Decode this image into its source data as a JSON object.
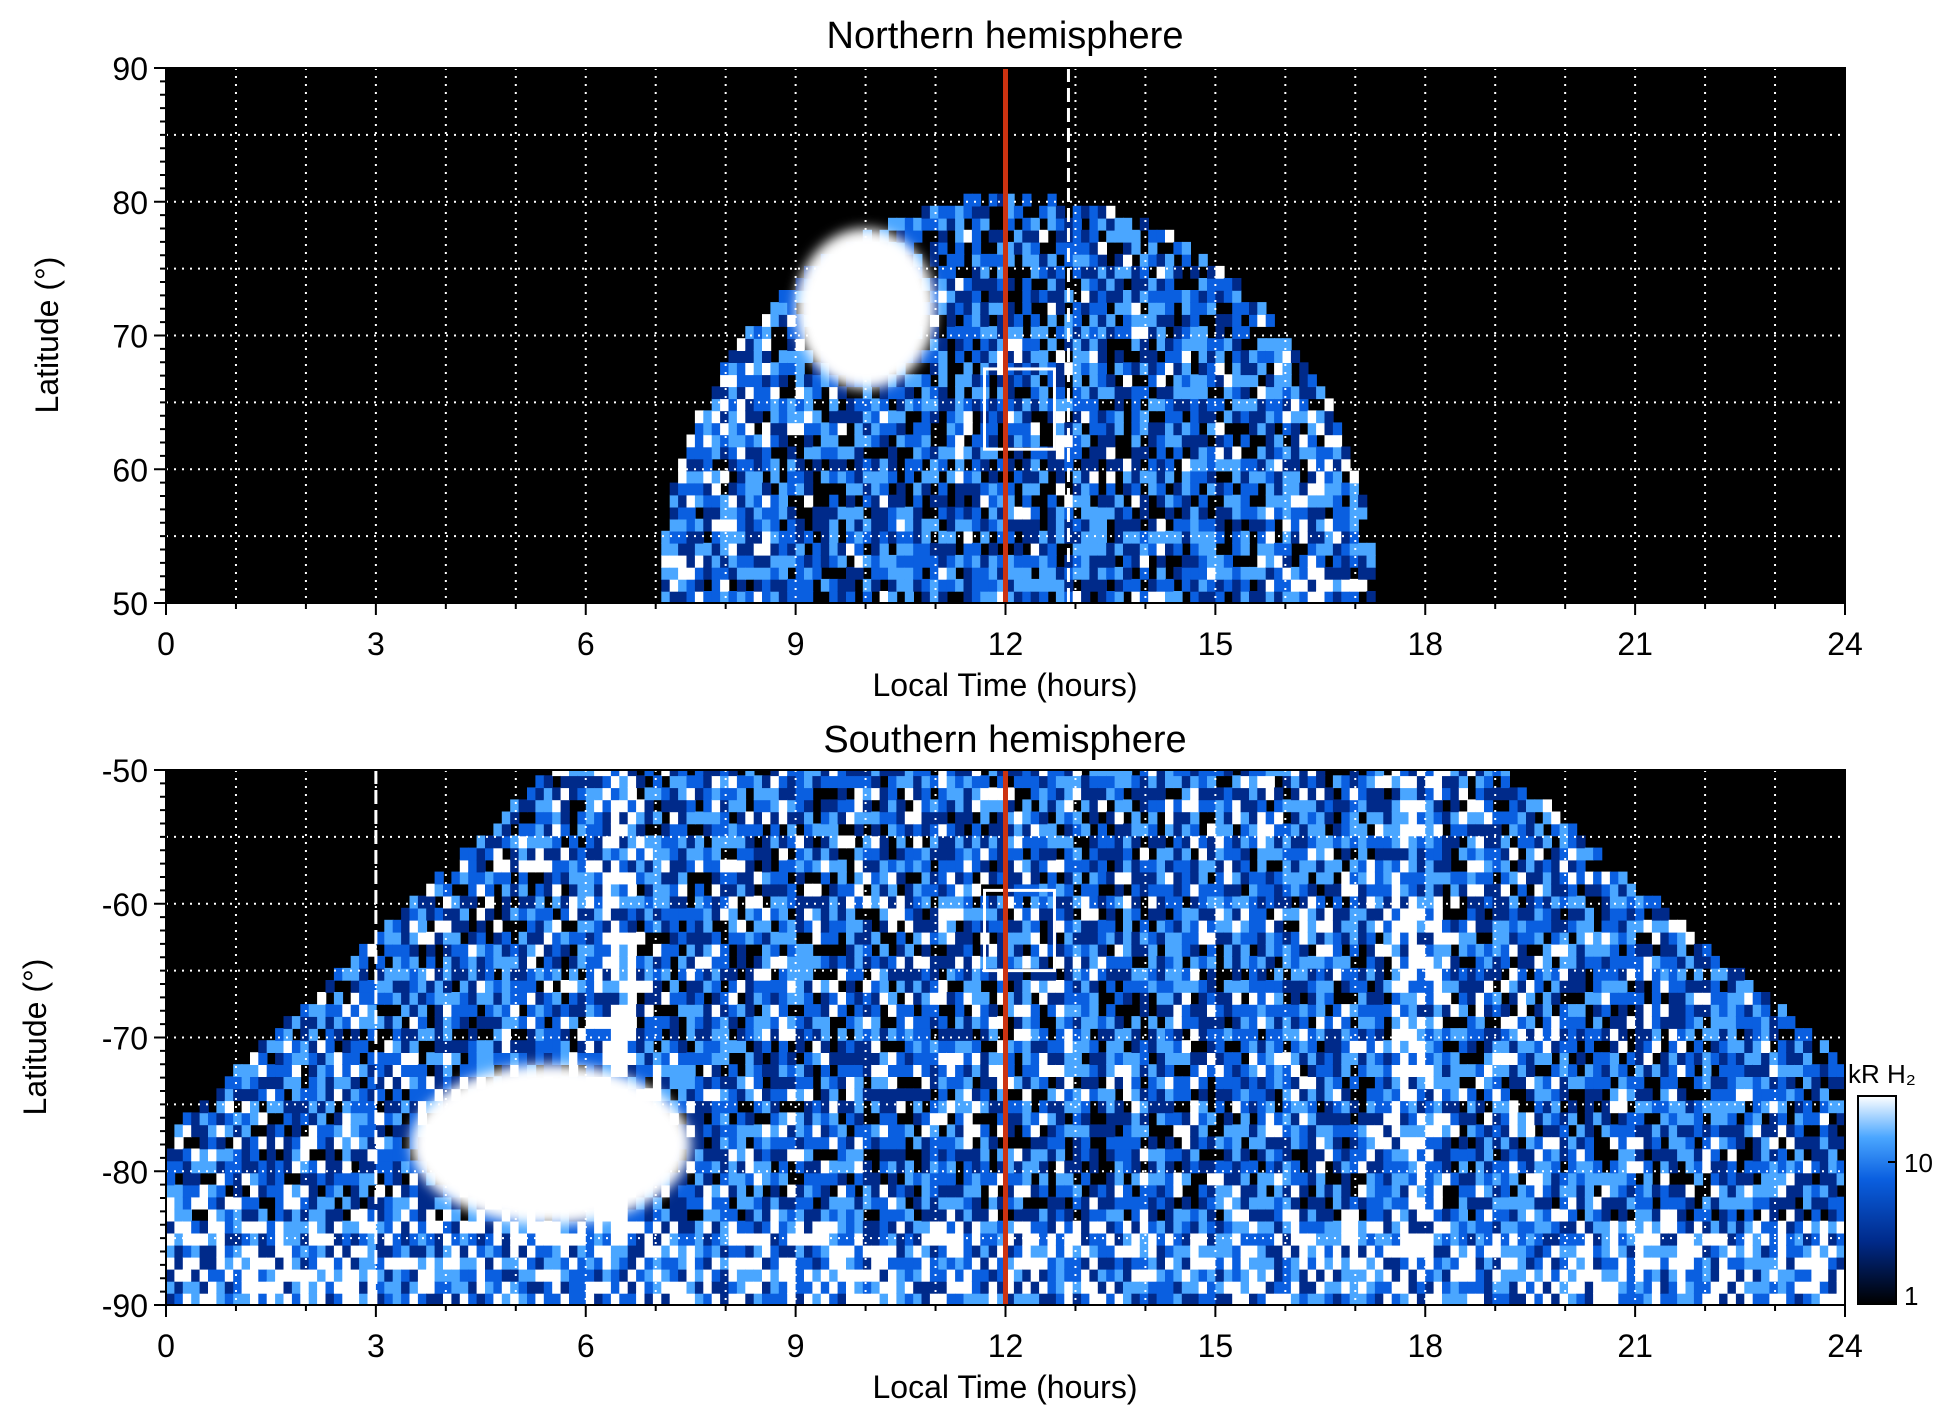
{
  "chart_data": [
    {
      "type": "heatmap",
      "title": "Northern hemisphere",
      "xlabel": "Local Time (hours)",
      "ylabel": "Latitude (°)",
      "xlim": [
        0,
        24
      ],
      "ylim": [
        50,
        90
      ],
      "x_ticks": [
        0,
        3,
        6,
        9,
        12,
        15,
        18,
        21,
        24
      ],
      "x_tick_labels": [
        "0",
        "3",
        "6",
        "9",
        "12",
        "15",
        "18",
        "21",
        "24"
      ],
      "y_ticks": [
        50,
        60,
        70,
        80,
        90
      ],
      "y_tick_labels": [
        "50",
        "60",
        "70",
        "80",
        "90"
      ],
      "grid": true,
      "coverage": {
        "lt_range": [
          7.0,
          17.2
        ],
        "lat_max": 80
      },
      "bright_patch": {
        "lt": [
          9.0,
          11.0
        ],
        "lat": [
          66,
          78
        ]
      },
      "box": {
        "lt": [
          11.7,
          12.7
        ],
        "lat": [
          61.5,
          67.5
        ]
      },
      "noon_line_lt": 12,
      "dashed_line_lt": 12.9
    },
    {
      "type": "heatmap",
      "title": "Southern hemisphere",
      "xlabel": "Local Time (hours)",
      "ylabel": "Latitude (°)",
      "xlim": [
        0,
        24
      ],
      "ylim": [
        -90,
        -50
      ],
      "x_ticks": [
        0,
        3,
        6,
        9,
        12,
        15,
        18,
        21,
        24
      ],
      "x_tick_labels": [
        "0",
        "3",
        "6",
        "9",
        "12",
        "15",
        "18",
        "21",
        "24"
      ],
      "y_ticks": [
        -90,
        -80,
        -70,
        -60,
        -50
      ],
      "y_tick_labels": [
        "-90",
        "-80",
        "-70",
        "-60",
        "-50"
      ],
      "grid": true,
      "bright_patch": {
        "lt": [
          3.5,
          7.5
        ],
        "lat": [
          -84,
          -72
        ]
      },
      "box": {
        "lt": [
          11.7,
          12.7
        ],
        "lat": [
          -65,
          -59
        ]
      },
      "noon_line_lt": 12,
      "dashed_line_lt": 3
    }
  ],
  "colorbar": {
    "label": "kR H₂",
    "ticks": [
      "1",
      "10"
    ],
    "scale": "log",
    "colors": [
      "#000000",
      "#002a8a",
      "#0a5fe0",
      "#4aa6ff",
      "#ffffff"
    ]
  },
  "colors": {
    "noon_line": "#cc3311",
    "box": "#ffffff",
    "grid": "#ffffff",
    "background": "#000000"
  }
}
